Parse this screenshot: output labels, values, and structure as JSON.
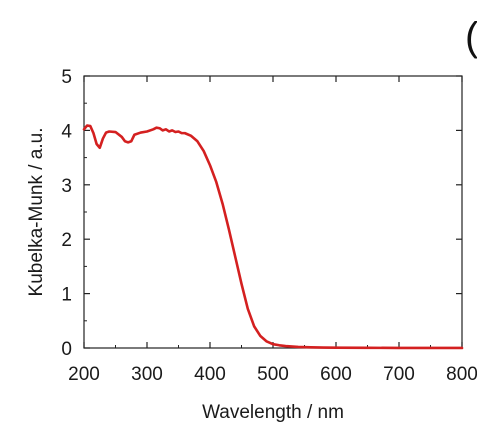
{
  "chart_data": {
    "type": "line",
    "title": "",
    "xlabel": "Wavelength / nm",
    "ylabel": "Kubelka-Munk / a.u.",
    "xlim": [
      200,
      800
    ],
    "ylim": [
      0,
      5
    ],
    "x_ticks": [
      200,
      300,
      400,
      500,
      600,
      700,
      800
    ],
    "y_ticks": [
      0,
      1,
      2,
      3,
      4,
      5
    ],
    "x_tick_labels": [
      "200",
      "300",
      "400",
      "500",
      "600",
      "700",
      "800"
    ],
    "y_tick_labels": [
      "0",
      "1",
      "2",
      "3",
      "4",
      "5"
    ],
    "grid": false,
    "legend": "none",
    "line_color": "#d42020",
    "corner_glyph": "(",
    "series": [
      {
        "x": [
          200,
          205,
          210,
          215,
          220,
          225,
          230,
          235,
          240,
          250,
          260,
          265,
          270,
          275,
          280,
          290,
          300,
          310,
          315,
          320,
          325,
          330,
          335,
          340,
          345,
          350,
          355,
          360,
          370,
          380,
          390,
          400,
          410,
          420,
          430,
          440,
          450,
          460,
          470,
          480,
          490,
          500,
          510,
          520,
          540,
          560,
          580,
          600,
          650,
          700,
          750,
          800
        ],
        "y": [
          4.02,
          4.09,
          4.08,
          3.95,
          3.75,
          3.68,
          3.85,
          3.96,
          3.98,
          3.97,
          3.88,
          3.8,
          3.78,
          3.8,
          3.92,
          3.96,
          3.98,
          4.02,
          4.05,
          4.04,
          4.0,
          4.02,
          3.98,
          4.0,
          3.97,
          3.98,
          3.95,
          3.95,
          3.9,
          3.8,
          3.62,
          3.36,
          3.05,
          2.65,
          2.18,
          1.68,
          1.18,
          0.72,
          0.4,
          0.22,
          0.12,
          0.07,
          0.05,
          0.035,
          0.02,
          0.012,
          0.008,
          0.005,
          0.003,
          0.002,
          0.001,
          0.001
        ]
      }
    ]
  }
}
